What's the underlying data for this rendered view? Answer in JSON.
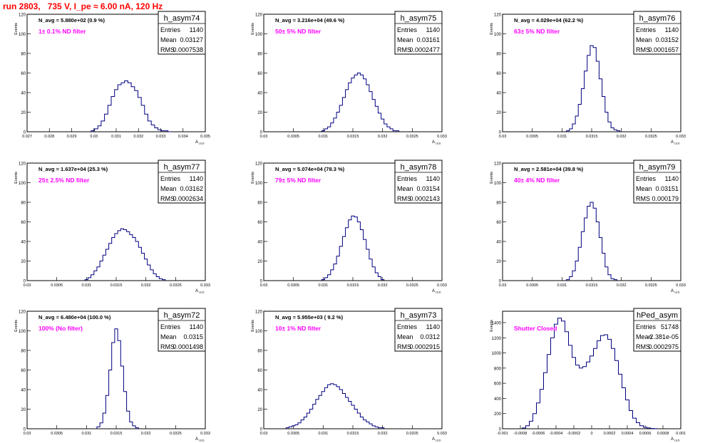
{
  "title": "run 2803,   735 V, I_pe ≈ 6.00 nA, 120 Hz",
  "colors": {
    "title": "#ff0000",
    "filter": "#ff00ff",
    "hist": "#000080"
  },
  "stat_labels": {
    "entries": "Entries",
    "mean": "Mean",
    "rms": "RMS"
  },
  "ylabel": "Events",
  "xlabel": "A",
  "xlabel_sub": "LED",
  "chart_data": [
    {
      "type": "histogram",
      "name": "h_asym74",
      "entries": "1140",
      "mean": "0.03127",
      "rms": "0.0007538",
      "navg": "N_avg = 5.880e+02 (0.9 %)",
      "filter": "1± 0.1% ND filter",
      "xlim": [
        0.027,
        0.035
      ],
      "xticks": [
        0.027,
        0.028,
        0.029,
        0.03,
        0.031,
        0.032,
        0.033,
        0.034,
        0.035
      ],
      "xticklabels": [
        "0.027",
        "0.028",
        "0.029",
        "0.03",
        "0.031",
        "0.032",
        "0.033",
        "0.034",
        "0.035"
      ],
      "ylim": [
        0,
        120
      ],
      "yticks": [
        0,
        20,
        40,
        60,
        80,
        100,
        120
      ],
      "x": [
        0.02995,
        0.0301,
        0.03025,
        0.0304,
        0.03055,
        0.0307,
        0.03085,
        0.031,
        0.03115,
        0.0313,
        0.03145,
        0.0316,
        0.03175,
        0.0319,
        0.03205,
        0.0322,
        0.03235,
        0.0325,
        0.03265,
        0.0328,
        0.03295,
        0.0331,
        0.03325,
        0.0334
      ],
      "y": [
        1,
        3,
        6,
        11,
        18,
        27,
        36,
        43,
        48,
        50,
        52,
        50,
        46,
        42,
        35,
        27,
        18,
        11,
        7,
        4,
        2,
        1,
        1,
        0
      ]
    },
    {
      "type": "histogram",
      "name": "h_asym75",
      "entries": "1140",
      "mean": "0.03161",
      "rms": "0.0002477",
      "navg": "N_avg = 3.216e+04 (49.6 %)",
      "filter": "50± 5% ND filter",
      "xlim": [
        0.03,
        0.033
      ],
      "xticks": [
        0.03,
        0.0305,
        0.031,
        0.0315,
        0.032,
        0.0325,
        0.033
      ],
      "xticklabels": [
        "0.03",
        "0.0305",
        "0.031",
        "0.0315",
        "0.032",
        "0.0325",
        "0.033"
      ],
      "ylim": [
        0,
        120
      ],
      "yticks": [
        0,
        20,
        40,
        60,
        80,
        100,
        120
      ],
      "x": [
        0.031,
        0.03105,
        0.0311,
        0.03115,
        0.0312,
        0.03125,
        0.0313,
        0.03135,
        0.0314,
        0.03145,
        0.0315,
        0.03155,
        0.0316,
        0.03165,
        0.0317,
        0.03175,
        0.0318,
        0.03185,
        0.0319,
        0.03195,
        0.032,
        0.03205,
        0.0321,
        0.03215,
        0.0322,
        0.03225
      ],
      "y": [
        1,
        3,
        5,
        9,
        14,
        20,
        27,
        35,
        43,
        50,
        55,
        58,
        60,
        58,
        54,
        48,
        41,
        33,
        26,
        19,
        13,
        8,
        5,
        3,
        1,
        1
      ]
    },
    {
      "type": "histogram",
      "name": "h_asym76",
      "entries": "1140",
      "mean": "0.03152",
      "rms": "0.0001657",
      "navg": "N_avg = 4.029e+04 (62.2 %)",
      "filter": "63± 5% ND filter",
      "xlim": [
        0.03,
        0.033
      ],
      "xticks": [
        0.03,
        0.0305,
        0.031,
        0.0315,
        0.032,
        0.0325,
        0.033
      ],
      "xticklabels": [
        "0.03",
        "0.0305",
        "0.031",
        "0.0315",
        "0.032",
        "0.0325",
        "0.033"
      ],
      "ylim": [
        0,
        120
      ],
      "yticks": [
        0,
        20,
        40,
        60,
        80,
        100,
        120
      ],
      "x": [
        0.0311,
        0.03115,
        0.0312,
        0.03125,
        0.0313,
        0.03135,
        0.0314,
        0.03145,
        0.0315,
        0.03155,
        0.0316,
        0.03165,
        0.0317,
        0.03175,
        0.0318,
        0.03185,
        0.0319,
        0.03195
      ],
      "y": [
        1,
        3,
        8,
        16,
        28,
        44,
        62,
        78,
        88,
        86,
        72,
        54,
        36,
        20,
        10,
        4,
        2,
        1
      ]
    },
    {
      "type": "histogram",
      "name": "h_asym77",
      "entries": "1140",
      "mean": "0.03162",
      "rms": "0.0002634",
      "navg": "N_avg = 1.637e+04 (25.3 %)",
      "filter": "25± 2.5% ND filter",
      "xlim": [
        0.03,
        0.033
      ],
      "xticks": [
        0.03,
        0.0305,
        0.031,
        0.0315,
        0.032,
        0.0325,
        0.033
      ],
      "xticklabels": [
        "0.03",
        "0.0305",
        "0.031",
        "0.0315",
        "0.032",
        "0.0325",
        "0.033"
      ],
      "ylim": [
        0,
        120
      ],
      "yticks": [
        0,
        20,
        40,
        60,
        80,
        100,
        120
      ],
      "x": [
        0.031,
        0.03105,
        0.0311,
        0.03115,
        0.0312,
        0.03125,
        0.0313,
        0.03135,
        0.0314,
        0.03145,
        0.0315,
        0.03155,
        0.0316,
        0.03165,
        0.0317,
        0.03175,
        0.0318,
        0.03185,
        0.0319,
        0.03195,
        0.032,
        0.03205,
        0.0321,
        0.03215,
        0.0322,
        0.03225,
        0.0323
      ],
      "y": [
        1,
        3,
        6,
        10,
        14,
        20,
        26,
        32,
        38,
        44,
        48,
        51,
        53,
        52,
        50,
        47,
        44,
        40,
        34,
        28,
        22,
        16,
        11,
        7,
        4,
        2,
        1
      ]
    },
    {
      "type": "histogram",
      "name": "h_asym78",
      "entries": "1140",
      "mean": "0.03154",
      "rms": "0.0002143",
      "navg": "N_avg = 5.074e+04 (78.3 %)",
      "filter": "79± 5% ND filter",
      "xlim": [
        0.03,
        0.033
      ],
      "xticks": [
        0.03,
        0.0305,
        0.031,
        0.0315,
        0.032,
        0.0325,
        0.033
      ],
      "xticklabels": [
        "0.03",
        "0.0305",
        "0.031",
        "0.0315",
        "0.032",
        "0.0325",
        "0.033"
      ],
      "ylim": [
        0,
        120
      ],
      "yticks": [
        0,
        20,
        40,
        60,
        80,
        100,
        120
      ],
      "x": [
        0.031,
        0.03105,
        0.0311,
        0.03115,
        0.0312,
        0.03125,
        0.0313,
        0.03135,
        0.0314,
        0.03145,
        0.0315,
        0.03155,
        0.0316,
        0.03165,
        0.0317,
        0.03175,
        0.0318,
        0.03185,
        0.0319,
        0.03195,
        0.032
      ],
      "y": [
        1,
        3,
        6,
        11,
        17,
        25,
        35,
        45,
        54,
        62,
        66,
        65,
        60,
        52,
        42,
        32,
        22,
        14,
        8,
        4,
        1
      ]
    },
    {
      "type": "histogram",
      "name": "h_asym79",
      "entries": "1140",
      "mean": "0.03151",
      "rms": "0.000179",
      "navg": "N_avg = 2.581e+04 (39.8 %)",
      "filter": "40± 4% ND filter",
      "xlim": [
        0.03,
        0.033
      ],
      "xticks": [
        0.03,
        0.0305,
        0.031,
        0.0315,
        0.032,
        0.0325,
        0.033
      ],
      "xticklabels": [
        "0.03",
        "0.0305",
        "0.031",
        "0.0315",
        "0.032",
        "0.0325",
        "0.033"
      ],
      "ylim": [
        0,
        120
      ],
      "yticks": [
        0,
        20,
        40,
        60,
        80,
        100,
        120
      ],
      "x": [
        0.0311,
        0.03115,
        0.0312,
        0.03125,
        0.0313,
        0.03135,
        0.0314,
        0.03145,
        0.0315,
        0.03155,
        0.0316,
        0.03165,
        0.0317,
        0.03175,
        0.0318,
        0.03185,
        0.0319
      ],
      "y": [
        1,
        4,
        10,
        20,
        34,
        50,
        64,
        76,
        80,
        74,
        60,
        44,
        28,
        14,
        6,
        2,
        1
      ]
    },
    {
      "type": "histogram",
      "name": "h_asym72",
      "entries": "1140",
      "mean": "0.0315",
      "rms": "0.0001498",
      "navg": "N_avg = 6.480e+04 (100.0 %)",
      "filter": "100% (No filter)",
      "xlim": [
        0.03,
        0.033
      ],
      "xticks": [
        0.03,
        0.0305,
        0.031,
        0.0315,
        0.032,
        0.0325,
        0.033
      ],
      "xticklabels": [
        "0.03",
        "0.0305",
        "0.031",
        "0.0315",
        "0.032",
        "0.0325",
        "0.033"
      ],
      "ylim": [
        0,
        120
      ],
      "yticks": [
        0,
        20,
        40,
        60,
        80,
        100,
        120
      ],
      "x": [
        0.0312,
        0.03125,
        0.0313,
        0.03135,
        0.0314,
        0.03145,
        0.0315,
        0.03155,
        0.0316,
        0.03165,
        0.0317,
        0.03175,
        0.0318,
        0.03185
      ],
      "y": [
        2,
        6,
        16,
        34,
        60,
        88,
        102,
        90,
        64,
        38,
        18,
        7,
        3,
        1
      ]
    },
    {
      "type": "histogram",
      "name": "h_asym73",
      "entries": "1140",
      "mean": "0.0312",
      "rms": "0.0002915",
      "navg": "N_avg = 5.955e+03 ( 9.2 %)",
      "filter": "10± 1% ND filter",
      "xlim": [
        0.03,
        0.033
      ],
      "xticks": [
        0.03,
        0.0305,
        0.031,
        0.0315,
        0.032,
        0.0325,
        0.033
      ],
      "xticklabels": [
        "0.03",
        "0.0305",
        "0.031",
        "0.0315",
        "0.032",
        "0.0325",
        "0.033"
      ],
      "ylim": [
        0,
        120
      ],
      "yticks": [
        0,
        20,
        40,
        60,
        80,
        100,
        120
      ],
      "x": [
        0.0304,
        0.03045,
        0.0305,
        0.03055,
        0.0306,
        0.03065,
        0.0307,
        0.03075,
        0.0308,
        0.03085,
        0.0309,
        0.03095,
        0.031,
        0.03105,
        0.0311,
        0.03115,
        0.0312,
        0.03125,
        0.0313,
        0.03135,
        0.0314,
        0.03145,
        0.0315,
        0.03155,
        0.0316,
        0.03165,
        0.0317,
        0.03175,
        0.0318,
        0.03185,
        0.0319,
        0.03195,
        0.032
      ],
      "y": [
        1,
        2,
        3,
        4,
        6,
        9,
        12,
        16,
        20,
        25,
        30,
        34,
        38,
        42,
        45,
        46,
        45,
        43,
        40,
        36,
        32,
        28,
        24,
        20,
        16,
        12,
        9,
        7,
        5,
        3,
        2,
        1,
        1
      ]
    },
    {
      "type": "histogram",
      "name": "hPed_asym",
      "entries": "51748",
      "mean": "-2.381e-05",
      "rms": "0.0002975",
      "navg": "",
      "filter": "Shutter Closed",
      "xlim": [
        -0.001,
        0.001
      ],
      "xticks": [
        -0.001,
        -0.0008,
        -0.0006,
        -0.0004,
        -0.0002,
        0,
        0.0002,
        0.0004,
        0.0006,
        0.0008,
        0.001
      ],
      "xticklabels": [
        "-0.001",
        "-0.0008",
        "-0.0006",
        "-0.0004",
        "-0.0002",
        "0",
        "0.0002",
        "0.0004",
        "0.0006",
        "0.0008",
        "0.001"
      ],
      "ylim": [
        0,
        1550
      ],
      "yticks": [
        0,
        200,
        400,
        600,
        800,
        1000,
        1200,
        1400
      ],
      "x": [
        -0.00076,
        -0.00072,
        -0.00068,
        -0.00064,
        -0.0006,
        -0.00056,
        -0.00052,
        -0.00048,
        -0.00044,
        -0.0004,
        -0.00036,
        -0.00032,
        -0.00028,
        -0.00024,
        -0.0002,
        -0.00016,
        -0.00012,
        -8e-05,
        -4e-05,
        0,
        4e-05,
        8e-05,
        0.00012,
        0.00016,
        0.0002,
        0.00024,
        0.00028,
        0.00032,
        0.00036,
        0.0004,
        0.00044,
        0.00048,
        0.00052,
        0.00056,
        0.0006,
        0.00064,
        0.00068,
        0.00072
      ],
      "y": [
        10,
        40,
        100,
        200,
        340,
        520,
        740,
        980,
        1200,
        1380,
        1460,
        1420,
        1280,
        1100,
        940,
        840,
        800,
        820,
        880,
        960,
        1060,
        1160,
        1230,
        1240,
        1180,
        1060,
        900,
        720,
        540,
        380,
        240,
        140,
        80,
        40,
        20,
        10,
        4,
        1
      ]
    }
  ]
}
